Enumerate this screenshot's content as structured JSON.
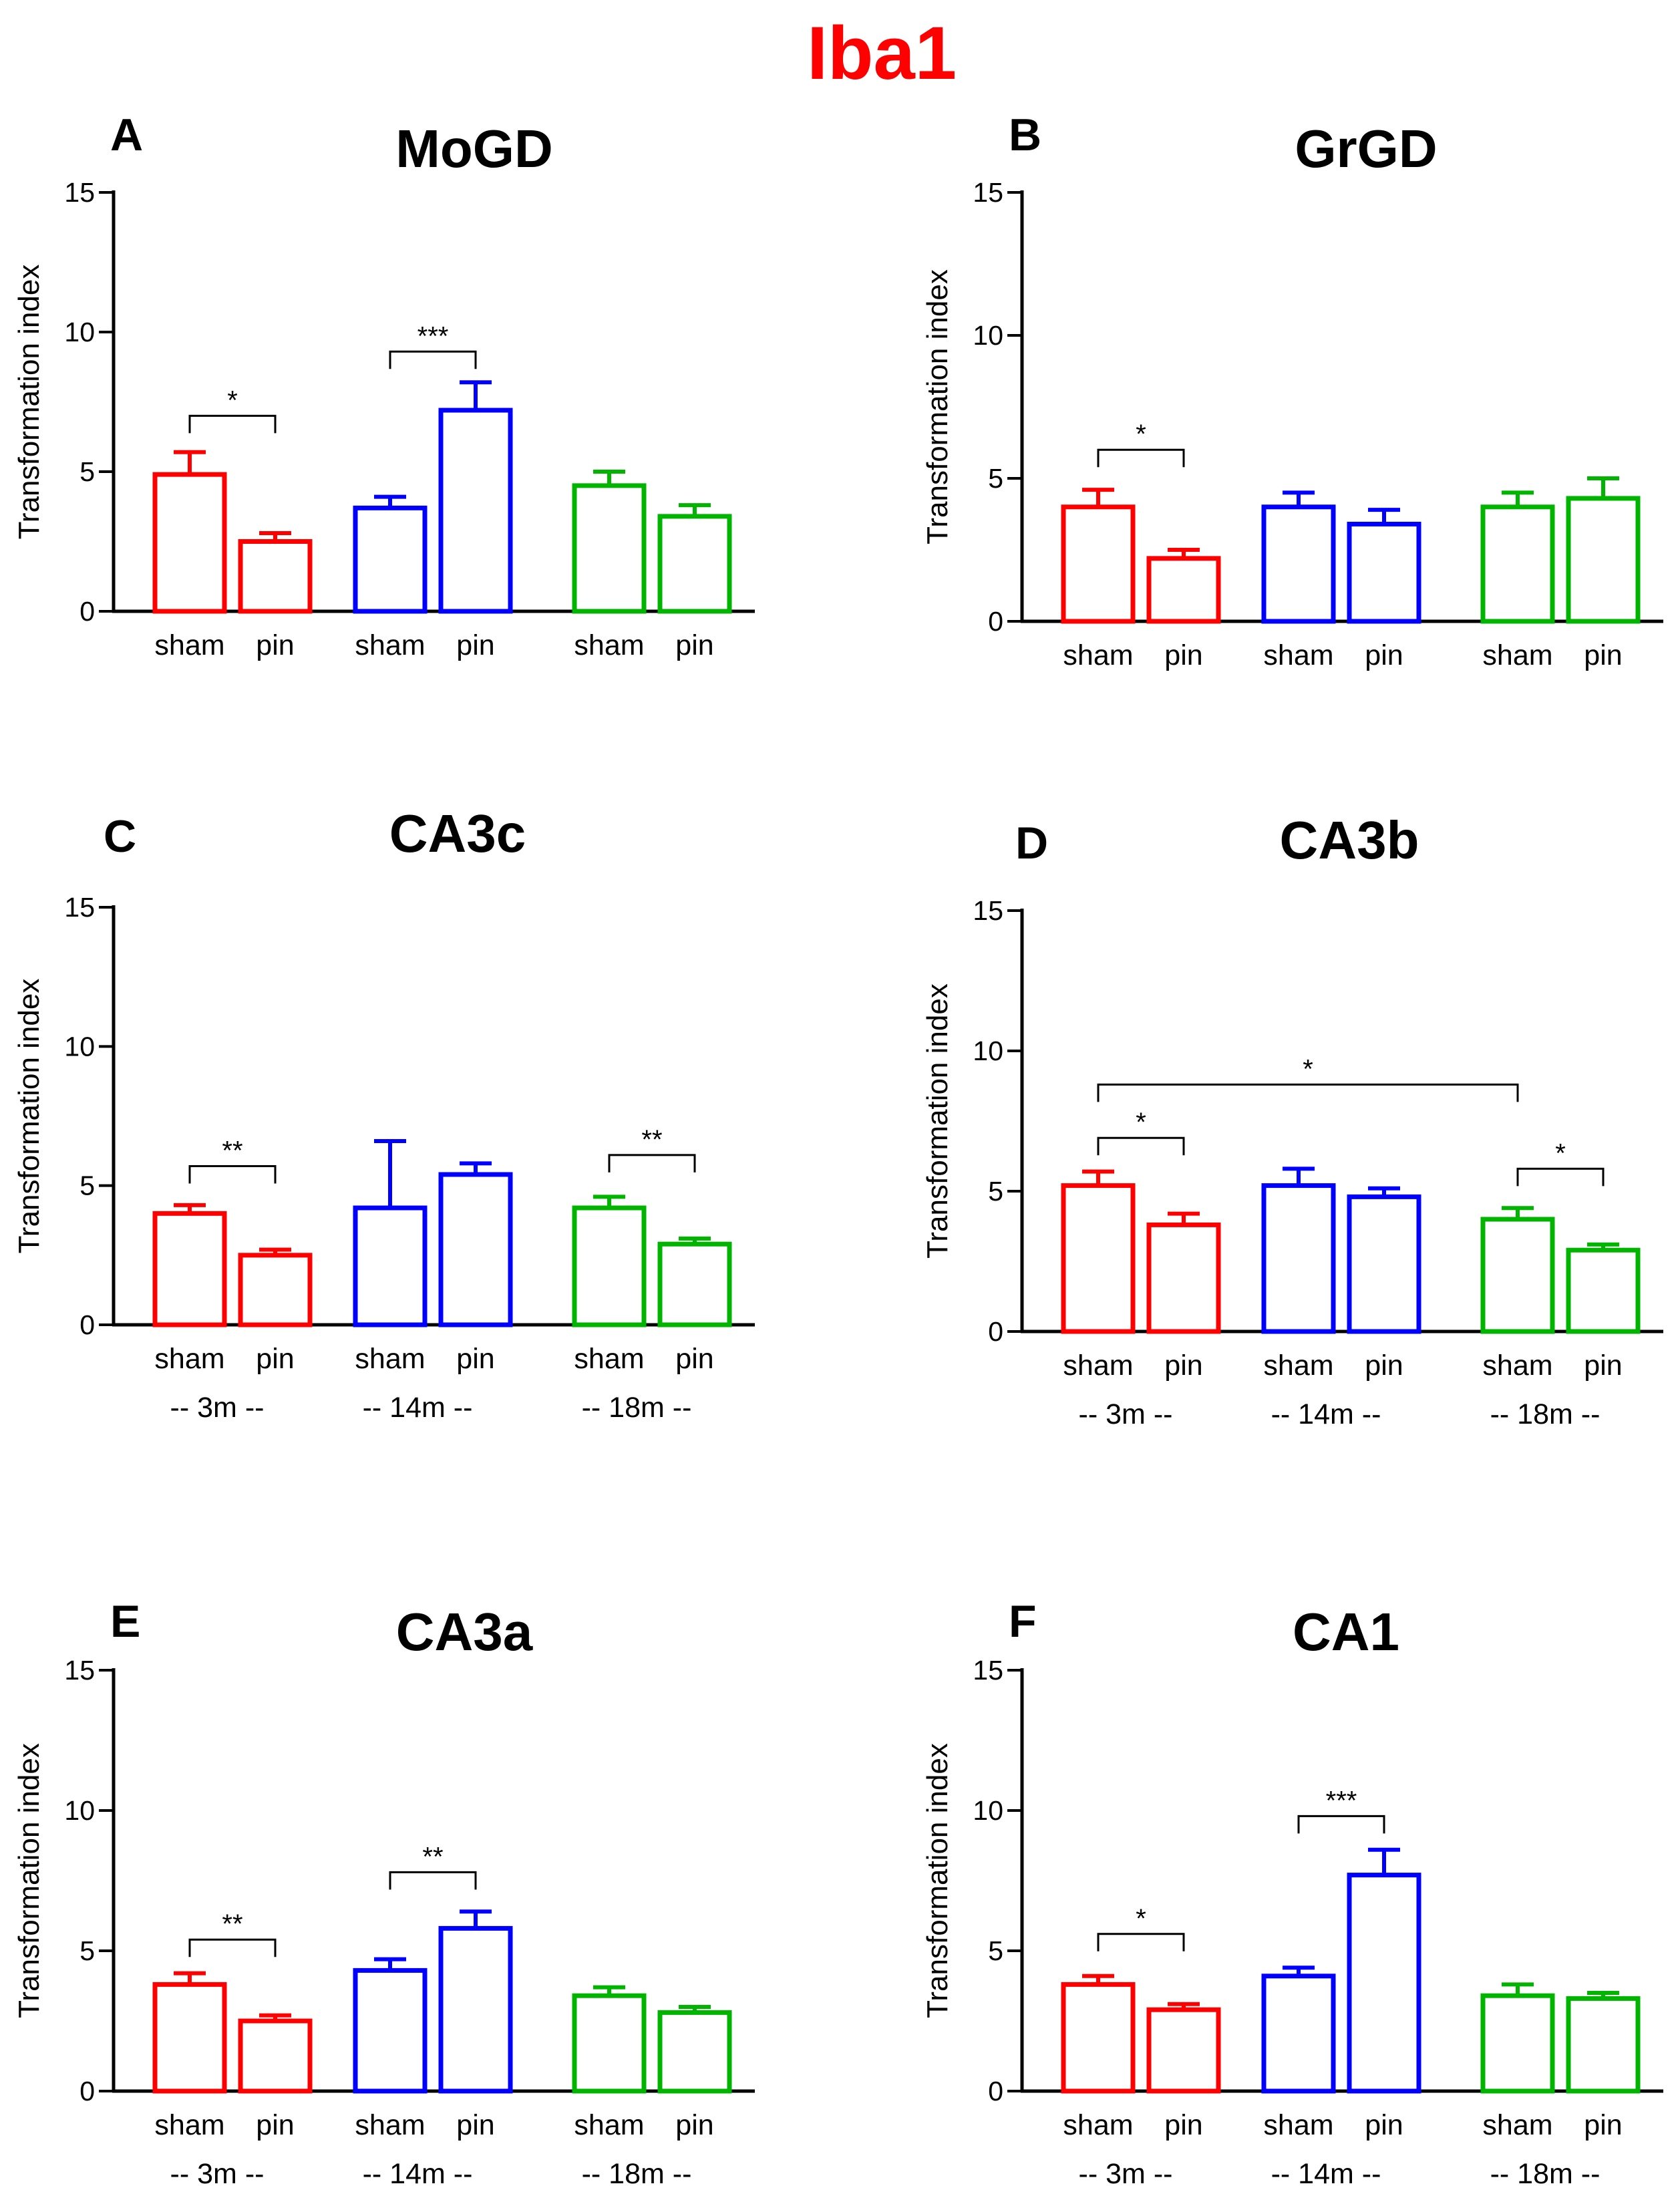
{
  "figure_title": "Iba1",
  "colors": {
    "title": "#ff0000",
    "3m": "#ff0000",
    "14m": "#0000ff",
    "18m": "#00b400",
    "axis": "#000000"
  },
  "chart_data": [
    {
      "type": "bar",
      "panel": "A",
      "title": "MoGD",
      "ylabel": "Transformation index",
      "ylim": [
        0,
        15
      ],
      "yticks": [
        "0",
        "5",
        "10",
        "15"
      ],
      "tick_labels": [
        "sham",
        "pin",
        "sham",
        "pin",
        "sham",
        "pin"
      ],
      "group_labels": [],
      "series": [
        {
          "name": "3m",
          "color_key": "3m",
          "values": [
            4.9,
            2.5
          ],
          "errors": [
            0.8,
            0.3
          ]
        },
        {
          "name": "14m",
          "color_key": "14m",
          "values": [
            3.7,
            7.2
          ],
          "errors": [
            0.4,
            1.0
          ]
        },
        {
          "name": "18m",
          "color_key": "18m",
          "values": [
            4.5,
            3.4
          ],
          "errors": [
            0.5,
            0.4
          ]
        }
      ],
      "significance": [
        {
          "from": 0,
          "to": 1,
          "label": "*",
          "y": 7.0
        },
        {
          "from": 2,
          "to": 3,
          "label": "***",
          "y": 9.3
        }
      ]
    },
    {
      "type": "bar",
      "panel": "B",
      "title": "GrGD",
      "ylabel": "Transformation index",
      "ylim": [
        0,
        15
      ],
      "yticks": [
        "0",
        "5",
        "10",
        "15"
      ],
      "tick_labels": [
        "sham",
        "pin",
        "sham",
        "pin",
        "sham",
        "pin"
      ],
      "group_labels": [],
      "series": [
        {
          "name": "3m",
          "color_key": "3m",
          "values": [
            4.0,
            2.2
          ],
          "errors": [
            0.6,
            0.3
          ]
        },
        {
          "name": "14m",
          "color_key": "14m",
          "values": [
            4.0,
            3.4
          ],
          "errors": [
            0.5,
            0.5
          ]
        },
        {
          "name": "18m",
          "color_key": "18m",
          "values": [
            4.0,
            4.3
          ],
          "errors": [
            0.5,
            0.7
          ]
        }
      ],
      "significance": [
        {
          "from": 0,
          "to": 1,
          "label": "*",
          "y": 6.0
        }
      ]
    },
    {
      "type": "bar",
      "panel": "C",
      "title": "CA3c",
      "ylabel": "Transformation index",
      "ylim": [
        0,
        15
      ],
      "yticks": [
        "0",
        "5",
        "10",
        "15"
      ],
      "tick_labels": [
        "sham",
        "pin",
        "sham",
        "pin",
        "sham",
        "pin"
      ],
      "group_labels": [
        "-- 3m --",
        "-- 14m --",
        "-- 18m --"
      ],
      "series": [
        {
          "name": "3m",
          "color_key": "3m",
          "values": [
            4.0,
            2.5
          ],
          "errors": [
            0.3,
            0.2
          ]
        },
        {
          "name": "14m",
          "color_key": "14m",
          "values": [
            4.2,
            5.4
          ],
          "errors": [
            2.4,
            0.4
          ]
        },
        {
          "name": "18m",
          "color_key": "18m",
          "values": [
            4.2,
            2.9
          ],
          "errors": [
            0.4,
            0.2
          ]
        }
      ],
      "significance": [
        {
          "from": 0,
          "to": 1,
          "label": "**",
          "y": 5.7
        },
        {
          "from": 4,
          "to": 5,
          "label": "**",
          "y": 6.1
        }
      ]
    },
    {
      "type": "bar",
      "panel": "D",
      "title": "CA3b",
      "ylabel": "Transformation index",
      "ylim": [
        0,
        15
      ],
      "yticks": [
        "0",
        "5",
        "10",
        "15"
      ],
      "tick_labels": [
        "sham",
        "pin",
        "sham",
        "pin",
        "sham",
        "pin"
      ],
      "group_labels": [
        "-- 3m --",
        "-- 14m --",
        "-- 18m --"
      ],
      "series": [
        {
          "name": "3m",
          "color_key": "3m",
          "values": [
            5.2,
            3.8
          ],
          "errors": [
            0.5,
            0.4
          ]
        },
        {
          "name": "14m",
          "color_key": "14m",
          "values": [
            5.2,
            4.8
          ],
          "errors": [
            0.6,
            0.3
          ]
        },
        {
          "name": "18m",
          "color_key": "18m",
          "values": [
            4.0,
            2.9
          ],
          "errors": [
            0.4,
            0.2
          ]
        }
      ],
      "significance": [
        {
          "from": 0,
          "to": 4,
          "label": "*",
          "y": 8.8
        },
        {
          "from": 0,
          "to": 1,
          "label": "*",
          "y": 6.9
        },
        {
          "from": 4,
          "to": 5,
          "label": "*",
          "y": 5.8
        }
      ]
    },
    {
      "type": "bar",
      "panel": "E",
      "title": "CA3a",
      "ylabel": "Transformation index",
      "ylim": [
        0,
        15
      ],
      "yticks": [
        "0",
        "5",
        "10",
        "15"
      ],
      "tick_labels": [
        "sham",
        "pin",
        "sham",
        "pin",
        "sham",
        "pin"
      ],
      "group_labels": [
        "-- 3m --",
        "-- 14m --",
        "-- 18m --"
      ],
      "series": [
        {
          "name": "3m",
          "color_key": "3m",
          "values": [
            3.8,
            2.5
          ],
          "errors": [
            0.4,
            0.2
          ]
        },
        {
          "name": "14m",
          "color_key": "14m",
          "values": [
            4.3,
            5.8
          ],
          "errors": [
            0.4,
            0.6
          ]
        },
        {
          "name": "18m",
          "color_key": "18m",
          "values": [
            3.4,
            2.8
          ],
          "errors": [
            0.3,
            0.2
          ]
        }
      ],
      "significance": [
        {
          "from": 0,
          "to": 1,
          "label": "**",
          "y": 5.4
        },
        {
          "from": 2,
          "to": 3,
          "label": "**",
          "y": 7.8
        }
      ]
    },
    {
      "type": "bar",
      "panel": "F",
      "title": "CA1",
      "ylabel": "Transformation index",
      "ylim": [
        0,
        15
      ],
      "yticks": [
        "0",
        "5",
        "10",
        "15"
      ],
      "tick_labels": [
        "sham",
        "pin",
        "sham",
        "pin",
        "sham",
        "pin"
      ],
      "group_labels": [
        "-- 3m --",
        "-- 14m --",
        "-- 18m --"
      ],
      "series": [
        {
          "name": "3m",
          "color_key": "3m",
          "values": [
            3.8,
            2.9
          ],
          "errors": [
            0.3,
            0.2
          ]
        },
        {
          "name": "14m",
          "color_key": "14m",
          "values": [
            4.1,
            7.7
          ],
          "errors": [
            0.3,
            0.9
          ]
        },
        {
          "name": "18m",
          "color_key": "18m",
          "values": [
            3.4,
            3.3
          ],
          "errors": [
            0.4,
            0.2
          ]
        }
      ],
      "significance": [
        {
          "from": 0,
          "to": 1,
          "label": "*",
          "y": 5.6
        },
        {
          "from": 2,
          "to": 3,
          "label": "***",
          "y": 9.8
        }
      ]
    }
  ]
}
